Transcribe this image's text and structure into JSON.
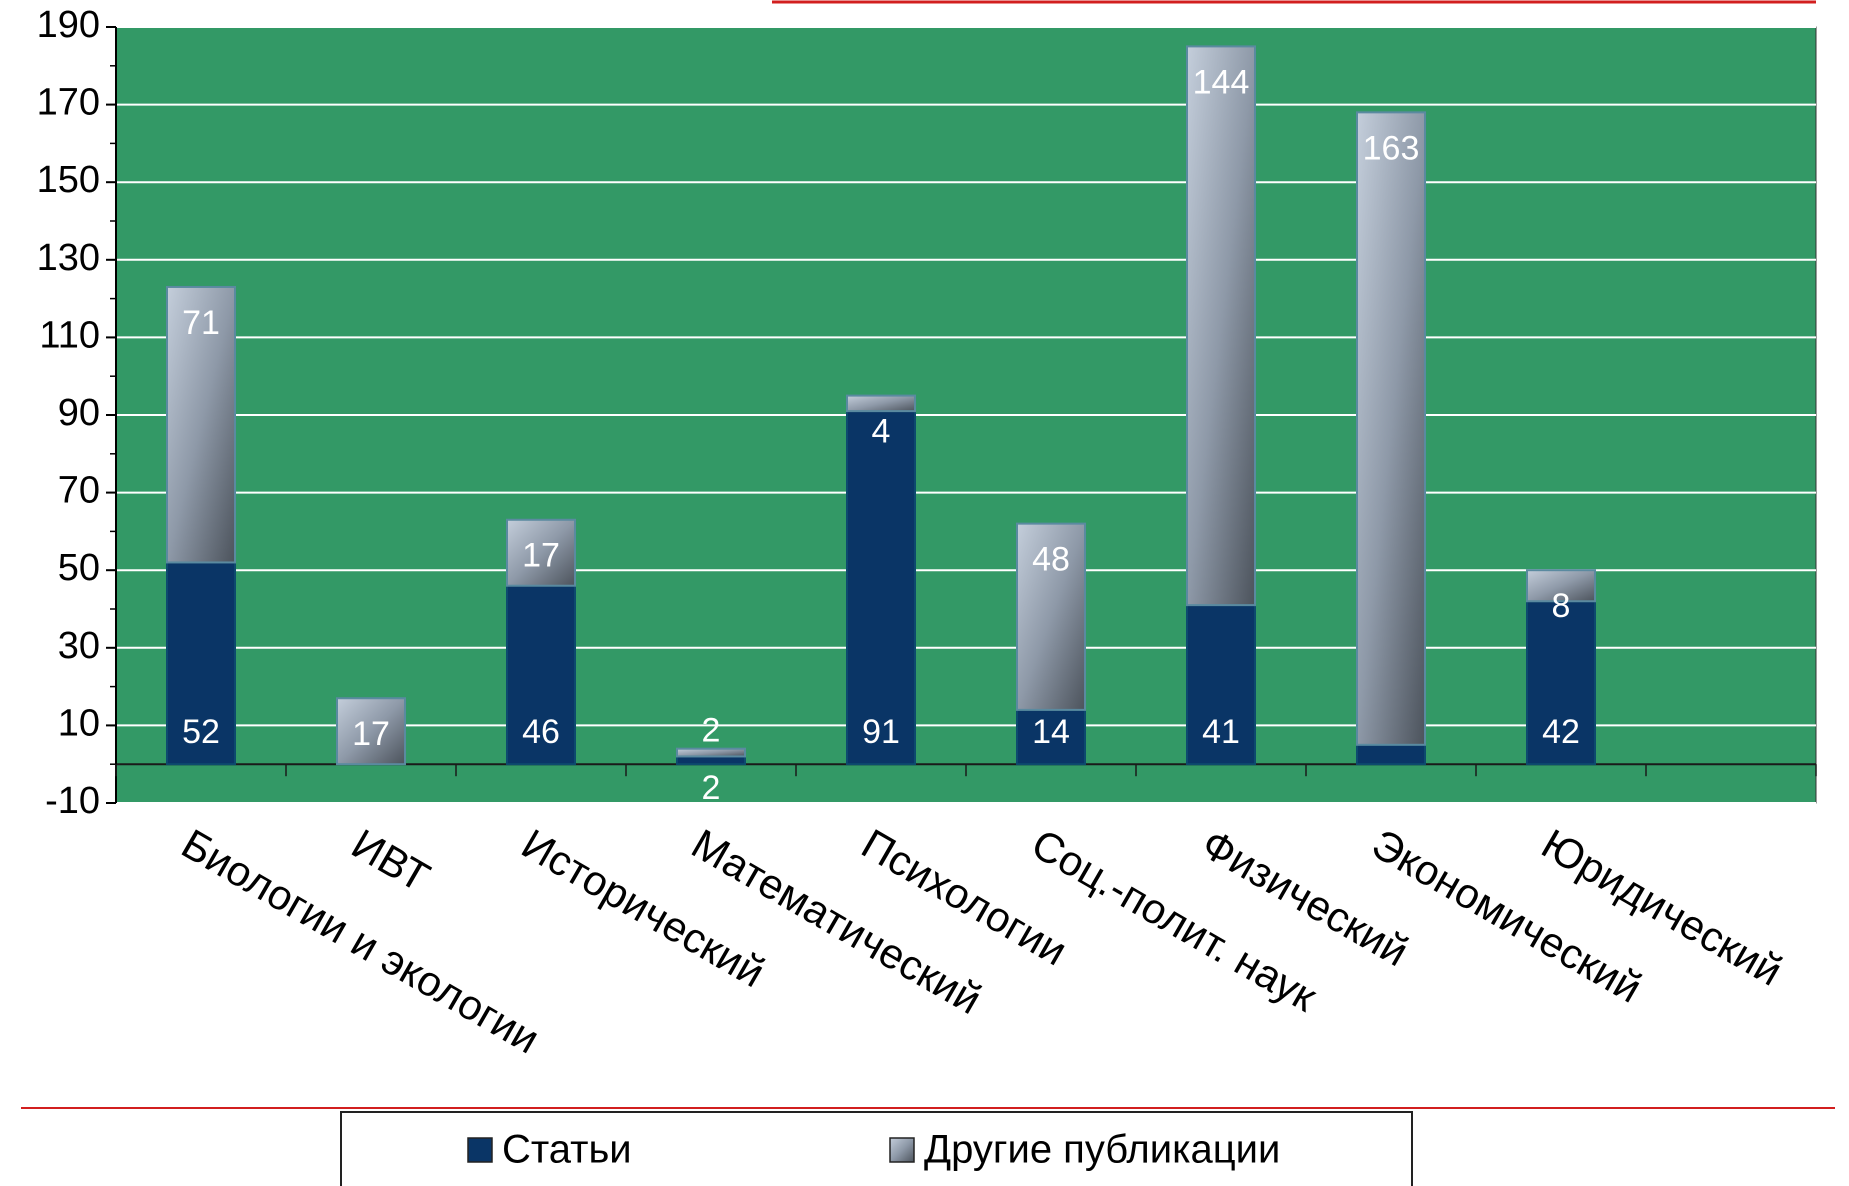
{
  "chart_data": {
    "type": "stacked_bar",
    "categories": [
      "Биологии и экологии",
      "ИВТ",
      "Исторический",
      "Математический",
      "Психологии",
      "Соц.-полит. наук",
      "Физический",
      "Экономический",
      "Юридический",
      null
    ],
    "series": [
      {
        "name": "Статьи",
        "color": "#0a3566",
        "values": [
          52,
          null,
          46,
          2,
          91,
          14,
          41,
          5,
          42,
          null
        ]
      },
      {
        "name": "Другие публикации",
        "color": "#9aa6b6",
        "values": [
          71,
          17,
          17,
          2,
          4,
          48,
          144,
          163,
          8,
          null
        ]
      }
    ],
    "ylim": [
      -10,
      190
    ],
    "yticks": [
      -10,
      10,
      30,
      50,
      70,
      90,
      110,
      130,
      150,
      170,
      190
    ],
    "grid": true,
    "background": "#339966",
    "legend": "bottom"
  }
}
